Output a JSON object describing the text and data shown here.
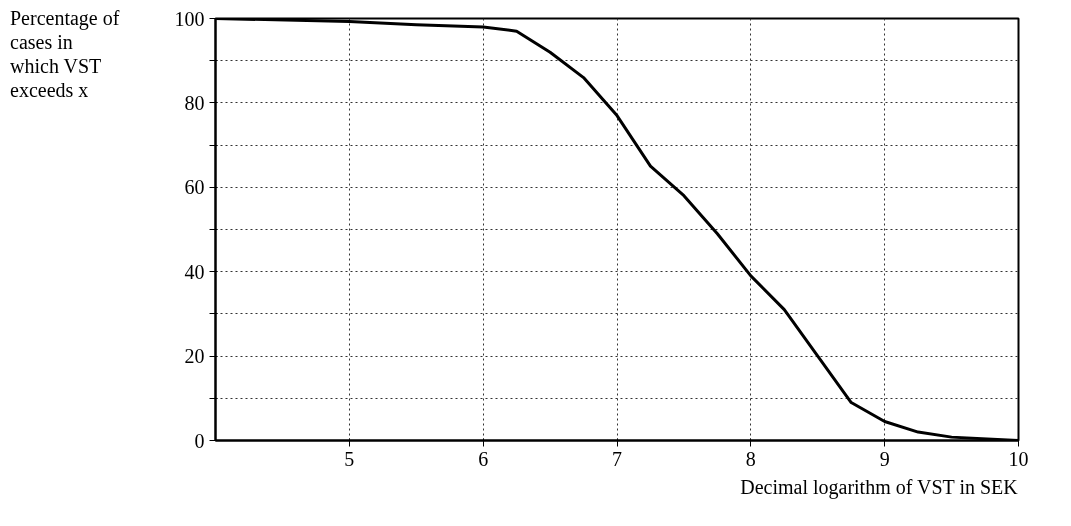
{
  "chart_data": {
    "type": "line",
    "ylabel": "Percentage of cases in which VST exceeds x",
    "xlabel": "Decimal logarithm of VST in SEK",
    "x": [
      4,
      5,
      5.5,
      6,
      6.25,
      6.5,
      6.75,
      7,
      7.25,
      7.5,
      7.75,
      8,
      8.25,
      8.5,
      8.75,
      9,
      9.25,
      9.5,
      10
    ],
    "series": [
      {
        "color": "#000000",
        "values": [
          100,
          99.3,
          98.5,
          98,
          97,
          92,
          86,
          77,
          65,
          58,
          49,
          39,
          31,
          20,
          9,
          4.5,
          2,
          0.8,
          0
        ]
      }
    ],
    "xlim": [
      4,
      10
    ],
    "xticks": [
      5,
      6,
      7,
      8,
      9,
      10
    ],
    "ylim": [
      0,
      100
    ],
    "yticks": [
      0,
      {
        "value": 10,
        "label": null
      },
      20,
      {
        "value": 30,
        "label": null
      },
      40,
      {
        "value": 50,
        "label": null
      },
      60,
      {
        "value": 70,
        "label": null
      },
      80,
      {
        "value": 90,
        "label": null
      },
      100
    ],
    "grid": true,
    "marker": "none",
    "line_style": "solid"
  }
}
